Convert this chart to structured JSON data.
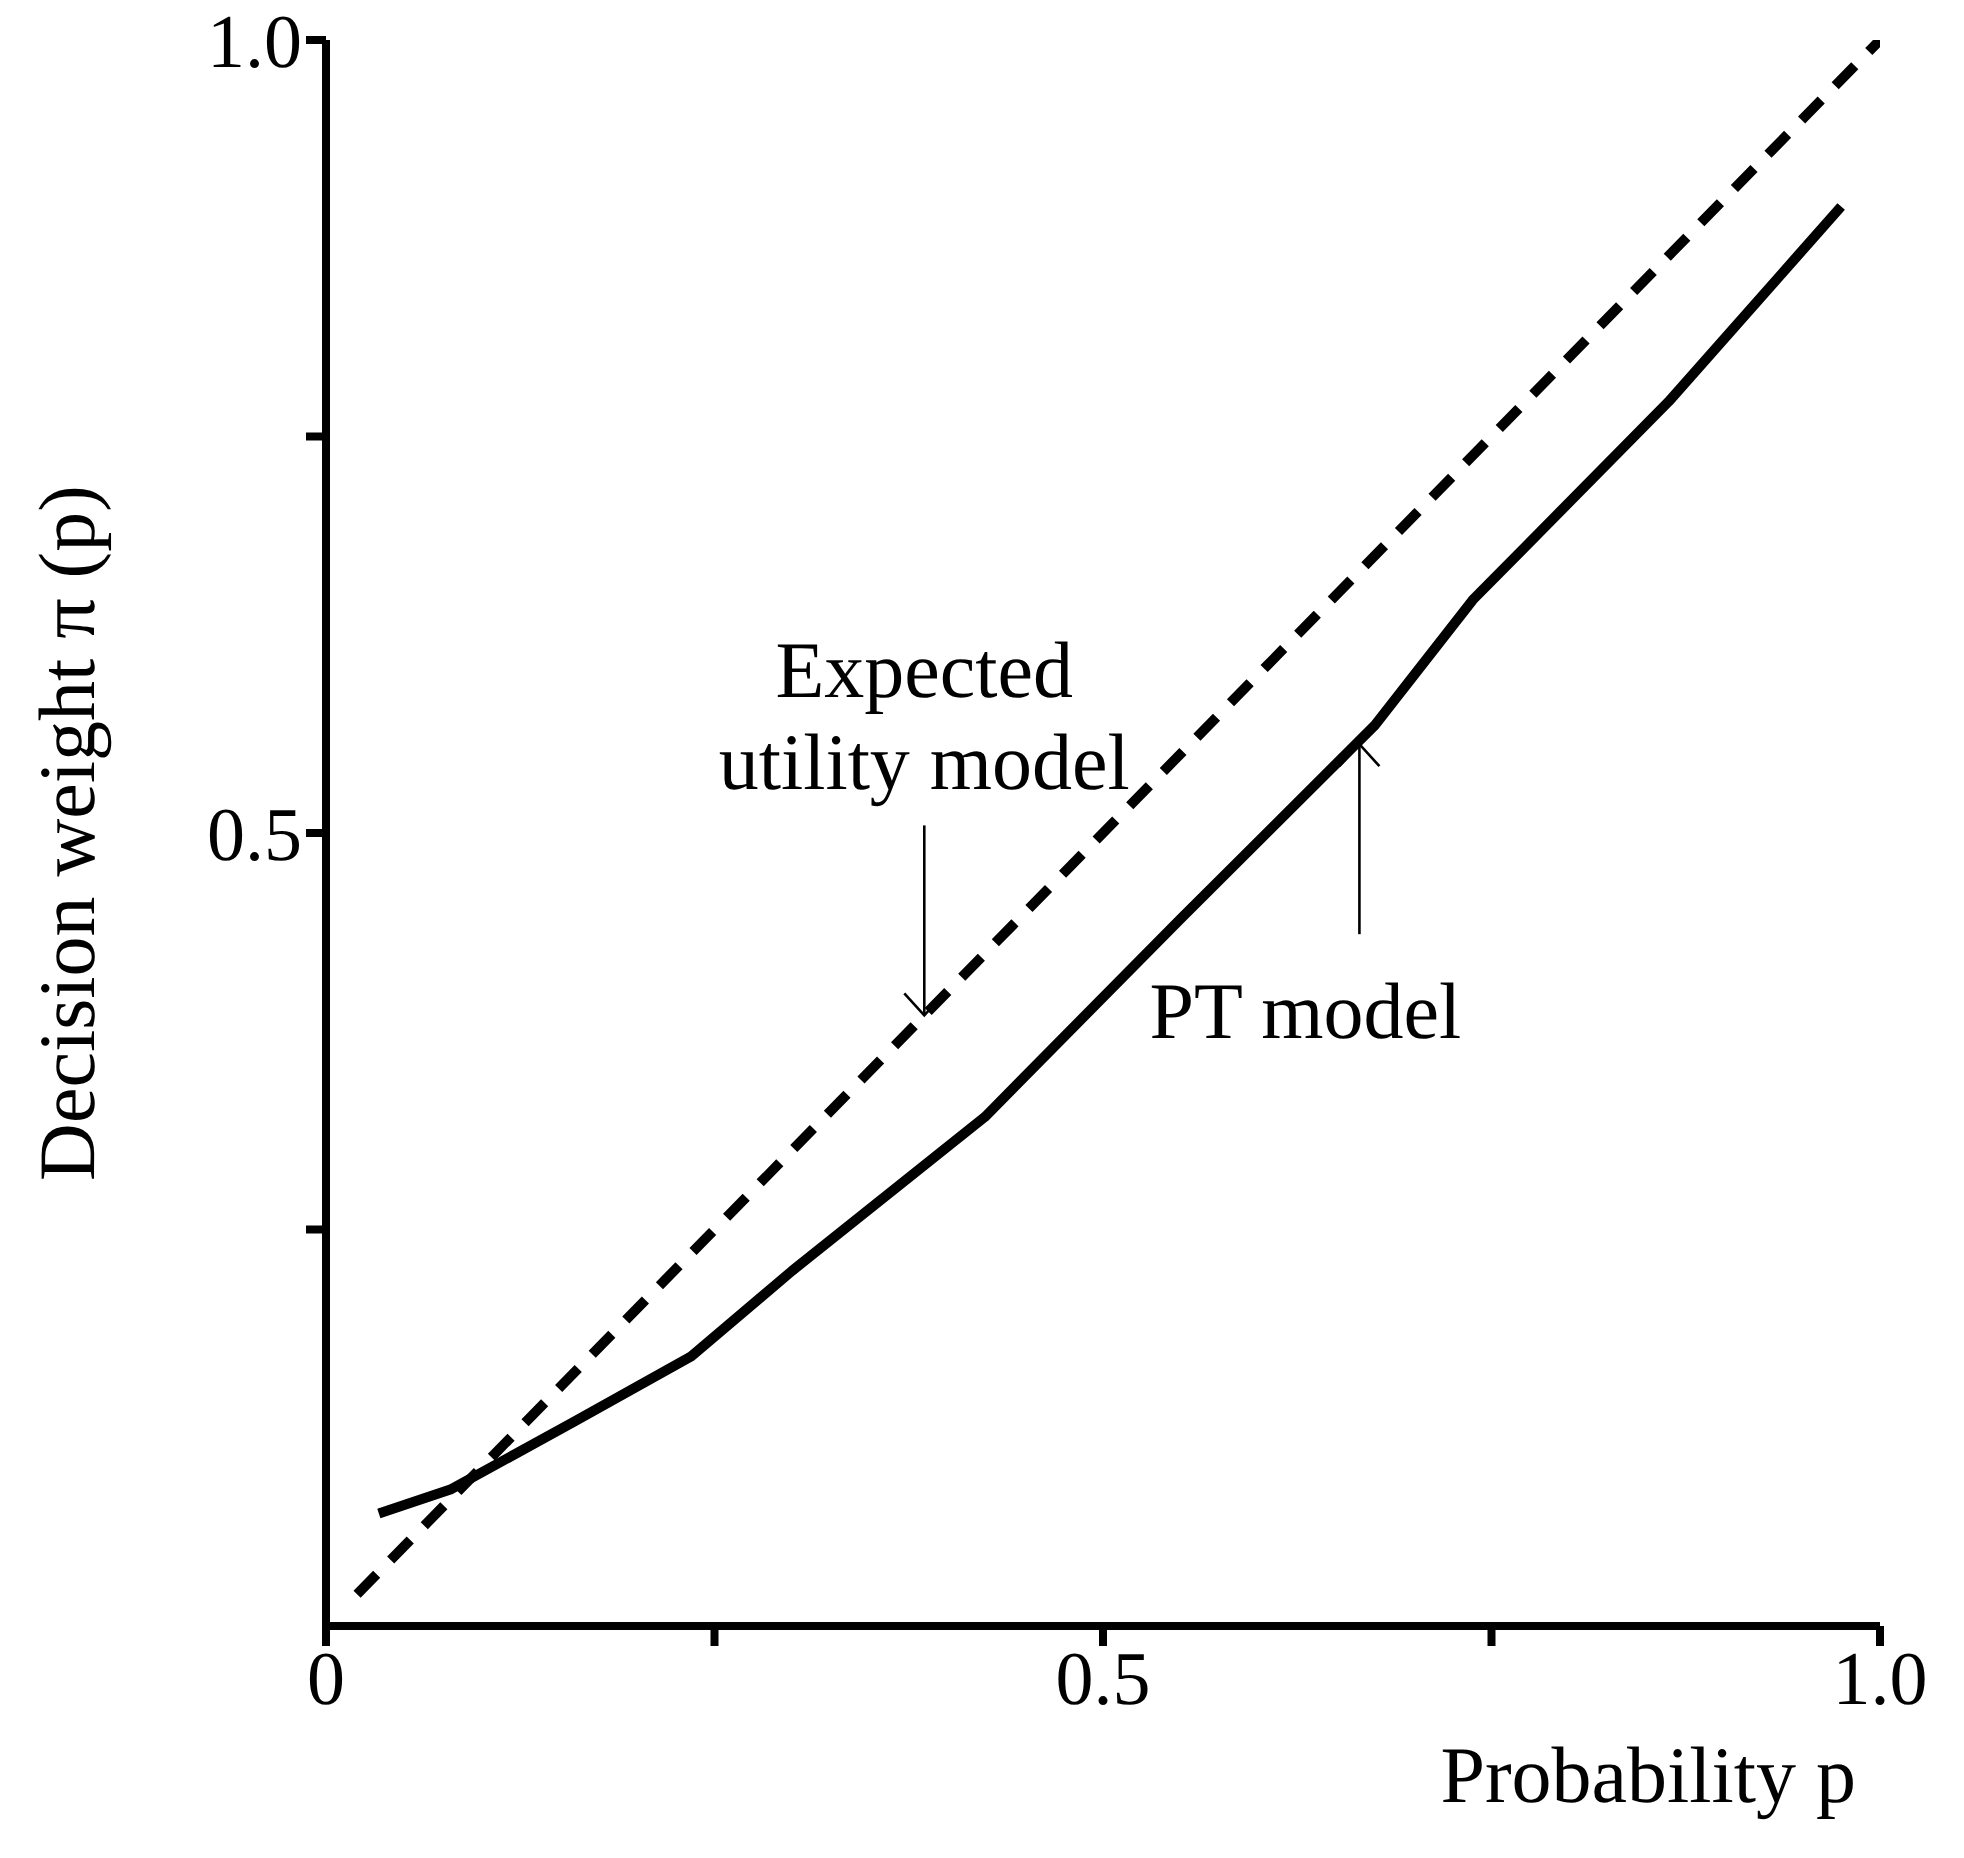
{
  "chart_data": {
    "type": "line",
    "xlabel": "Probability p",
    "ylabel": "Decision weight π (p)",
    "xlim": [
      0,
      1
    ],
    "ylim": [
      0,
      1
    ],
    "xticks": [
      0,
      {
        "value": 0.25,
        "label": null
      },
      0.5,
      {
        "value": 0.75,
        "label": null
      },
      {
        "value": 1,
        "label": "1.0"
      }
    ],
    "yticks": [
      {
        "value": 0.25,
        "label": null
      },
      0.5,
      {
        "value": 0.75,
        "label": null
      },
      {
        "value": 1,
        "label": "1.0"
      }
    ],
    "marker": "none",
    "series": [
      {
        "color": "#000000",
        "line_style": "dashed",
        "x": [
          0.02,
          1.0
        ],
        "values": [
          0.02,
          1.0
        ]
      },
      {
        "color": "#000000",
        "line_style": "solid",
        "x": [
          0.034,
          0.08,
          0.16,
          0.235,
          0.3,
          0.424,
          0.55,
          0.675,
          0.738,
          0.864,
          0.975
        ],
        "values": [
          0.071,
          0.086,
          0.129,
          0.17,
          0.224,
          0.321,
          0.446,
          0.568,
          0.647,
          0.772,
          0.895
        ]
      }
    ],
    "annotations": [
      {
        "text": "Expected utility model",
        "x": 0.385,
        "y": 0.385
      },
      {
        "text": "PT model",
        "x": 0.665,
        "y": 0.556
      }
    ]
  }
}
